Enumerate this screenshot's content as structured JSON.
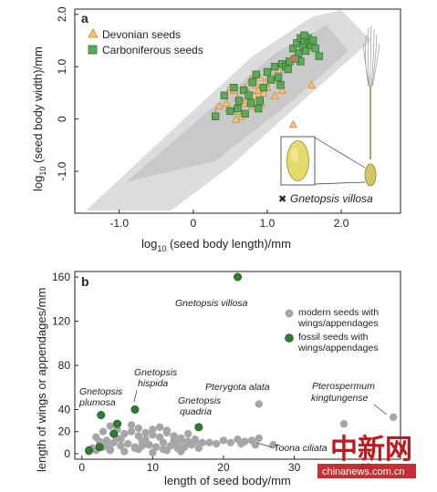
{
  "chart_data": [
    {
      "panel": "a",
      "type": "scatter",
      "xlabel": "log10 (seed body length)/mm",
      "ylabel": "log10 (seed body width)/mm",
      "xlabel_parts": {
        "prefix": "log",
        "sub": "10",
        "rest": " (seed body length)/mm"
      },
      "ylabel_parts": {
        "prefix": "log",
        "sub": "10",
        "rest": " (seed body width)/mm"
      },
      "xlim": [
        -1.6,
        2.8
      ],
      "ylim": [
        -1.8,
        2.1
      ],
      "xticks": [
        "-1.0",
        "0",
        "1.0",
        "2.0"
      ],
      "xtick_values": [
        -1.0,
        0,
        1.0,
        2.0
      ],
      "yticks": [
        "-1.0",
        "0",
        "1.0",
        "2.0"
      ],
      "ytick_values": [
        -1.0,
        0,
        1.0,
        2.0
      ],
      "legend_position": "top-left",
      "series": [
        {
          "name": "Devonian seeds",
          "marker": "triangle",
          "color": "#f2c37a",
          "stroke": "#c8893a",
          "x": [
            0.35,
            0.42,
            0.48,
            0.55,
            0.6,
            0.62,
            0.7,
            0.72,
            0.75,
            0.78,
            0.8,
            0.82,
            0.85,
            0.88,
            0.9,
            0.92,
            0.95,
            0.98,
            1.0,
            1.05,
            1.1,
            1.12,
            1.15,
            1.2,
            0.5,
            0.65,
            0.68,
            1.35,
            1.6,
            0.3,
            0.58,
            0.45
          ],
          "y": [
            0.25,
            0.45,
            0.2,
            0.55,
            0.4,
            0.15,
            0.6,
            0.35,
            0.5,
            0.75,
            0.25,
            0.45,
            0.65,
            0.55,
            0.8,
            0.3,
            0.5,
            0.7,
            0.6,
            0.85,
            0.45,
            0.75,
            0.95,
            0.55,
            0.6,
            0.05,
            0.3,
            -0.1,
            0.65,
            0.1,
            0.0,
            0.3
          ]
        },
        {
          "name": "Carboniferous seeds",
          "marker": "square",
          "color": "#5fa75a",
          "stroke": "#2e6e2c",
          "x": [
            0.3,
            0.42,
            0.5,
            0.55,
            0.62,
            0.68,
            0.7,
            0.75,
            0.8,
            0.85,
            0.9,
            0.95,
            1.0,
            1.05,
            1.1,
            1.15,
            1.2,
            1.25,
            1.3,
            1.35,
            1.4,
            1.42,
            1.45,
            1.48,
            1.5,
            1.52,
            1.55,
            1.58,
            1.6,
            1.62,
            1.65,
            1.7,
            1.45,
            1.38,
            1.28,
            0.88,
            0.78,
            0.6,
            1.18,
            1.5
          ],
          "y": [
            0.05,
            0.45,
            0.15,
            0.6,
            0.35,
            0.55,
            0.1,
            0.45,
            0.7,
            0.85,
            0.35,
            0.6,
            0.9,
            0.75,
            1.0,
            0.8,
            1.05,
            1.0,
            1.1,
            1.35,
            1.45,
            1.25,
            1.55,
            1.4,
            1.5,
            1.3,
            1.55,
            1.45,
            1.4,
            1.5,
            1.35,
            1.2,
            1.1,
            1.15,
            0.95,
            0.2,
            0.3,
            0.2,
            0.65,
            1.6
          ]
        },
        {
          "name": "Gnetopsis villosa",
          "marker": "x",
          "color": "#e06a6a",
          "x": [
            1.35
          ],
          "y": [
            1.15
          ]
        }
      ]
    },
    {
      "panel": "b",
      "type": "scatter",
      "xlabel": "length of seed body/mm",
      "ylabel": "length of wings or appendages/mm",
      "xlim": [
        -1,
        45
      ],
      "ylim": [
        -5,
        165
      ],
      "xticks": [
        "0",
        "10",
        "20",
        "30",
        "40"
      ],
      "xtick_values": [
        0,
        10,
        20,
        30,
        40
      ],
      "yticks": [
        "0",
        "20",
        "40",
        "80",
        "120",
        "160"
      ],
      "ytick_values": [
        0,
        20,
        40,
        80,
        120,
        160
      ],
      "legend_position": "right",
      "series": [
        {
          "name": "modern seeds with wings/appendages",
          "marker": "circle",
          "color": "#a6a6a6",
          "x": [
            1,
            1.5,
            2,
            2.5,
            3,
            3.5,
            4,
            4.5,
            5,
            5.5,
            6,
            6.5,
            7,
            7.5,
            8,
            8.5,
            9,
            9.5,
            10,
            10.5,
            11,
            11.5,
            12,
            12.5,
            13,
            13.5,
            14,
            14.5,
            15,
            15.5,
            16,
            16.5,
            17,
            2,
            3,
            4,
            5,
            6,
            7,
            8,
            9,
            10,
            11,
            12,
            13,
            14,
            15,
            3.5,
            5.5,
            7.5,
            9.5,
            11.5,
            13.5,
            20,
            21,
            22,
            23,
            24,
            25,
            22.5,
            24.5,
            4,
            6,
            8,
            10,
            12,
            14,
            25,
            27,
            37,
            44,
            16,
            18,
            19,
            2.5,
            8.5
          ],
          "y": [
            2,
            5,
            3,
            8,
            6,
            12,
            4,
            10,
            14,
            7,
            18,
            9,
            20,
            5,
            16,
            11,
            13,
            8,
            22,
            6,
            15,
            10,
            19,
            7,
            12,
            9,
            14,
            6,
            11,
            8,
            13,
            5,
            10,
            15,
            20,
            25,
            22,
            18,
            26,
            23,
            19,
            17,
            24,
            21,
            16,
            12,
            18,
            9,
            13,
            6,
            8,
            4,
            5,
            12,
            10,
            13,
            11,
            12,
            14,
            9,
            8,
            3,
            2,
            4,
            1,
            3,
            2,
            45,
            8,
            27,
            33,
            11,
            10,
            9,
            11,
            7
          ]
        },
        {
          "name": "fossil seeds with wings/appendages",
          "marker": "circle",
          "color": "#2e7d32",
          "x": [
            1,
            2.5,
            2.7,
            4.5,
            5,
            7.5,
            16.5,
            22
          ],
          "y": [
            3,
            6,
            35,
            18,
            27,
            40,
            24,
            160
          ]
        }
      ],
      "annotations": [
        {
          "text": "Gnetopsis villosa",
          "italic": true
        },
        {
          "text": "Gnetopsis",
          "italic": true
        },
        {
          "text": "hispida",
          "italic": true
        },
        {
          "text": "Gnetopsis",
          "italic": true
        },
        {
          "text": "plumosa",
          "italic": true
        },
        {
          "text": "Gnetopsis",
          "italic": true
        },
        {
          "text": "quadria",
          "italic": true
        },
        {
          "text": "Pterygota alata",
          "italic": true
        },
        {
          "text": "Pterospermum",
          "italic": true
        },
        {
          "text": "kingtungense",
          "italic": true
        },
        {
          "text": "Toona ciliata",
          "italic": true
        }
      ]
    }
  ],
  "panel_labels": {
    "a": "a",
    "b": "b"
  },
  "inset_label": "Gnetopsis villosa",
  "watermark": {
    "chinese": "中新网",
    "url": "chinanews.com.cn"
  }
}
